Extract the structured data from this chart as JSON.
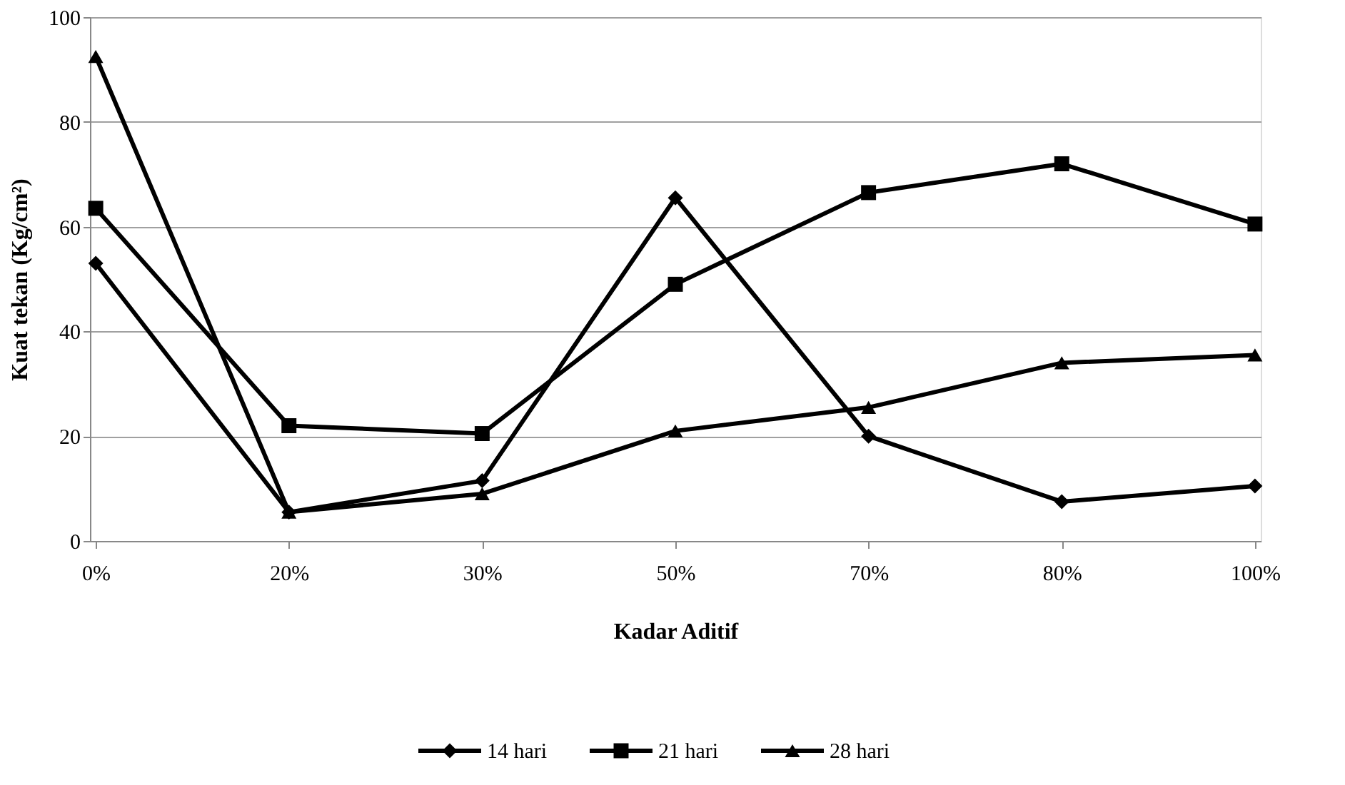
{
  "chart_data": {
    "type": "line",
    "xlabel": "Kadar Aditif",
    "ylabel": "Kuat tekan (Kg/cm²)",
    "categories": [
      "0%",
      "20%",
      "30%",
      "50%",
      "70%",
      "80%",
      "100%"
    ],
    "series": [
      {
        "name": "14 hari",
        "color": "#000000",
        "marker": "diamond",
        "values": [
          53,
          5.5,
          11.5,
          65.5,
          20,
          7.5,
          10.5
        ]
      },
      {
        "name": "21 hari",
        "color": "#000000",
        "marker": "square",
        "values": [
          63.5,
          22,
          20.5,
          49,
          66.5,
          72,
          60.5
        ]
      },
      {
        "name": "28 hari",
        "color": "#000000",
        "marker": "triangle",
        "values": [
          92.5,
          5.5,
          9,
          21,
          25.5,
          34,
          35.5
        ]
      }
    ],
    "ylim": [
      0,
      100
    ],
    "yticks": [
      0,
      20,
      40,
      60,
      80,
      100
    ],
    "grid": "y",
    "legend": "bottom",
    "line_style": "solid"
  }
}
